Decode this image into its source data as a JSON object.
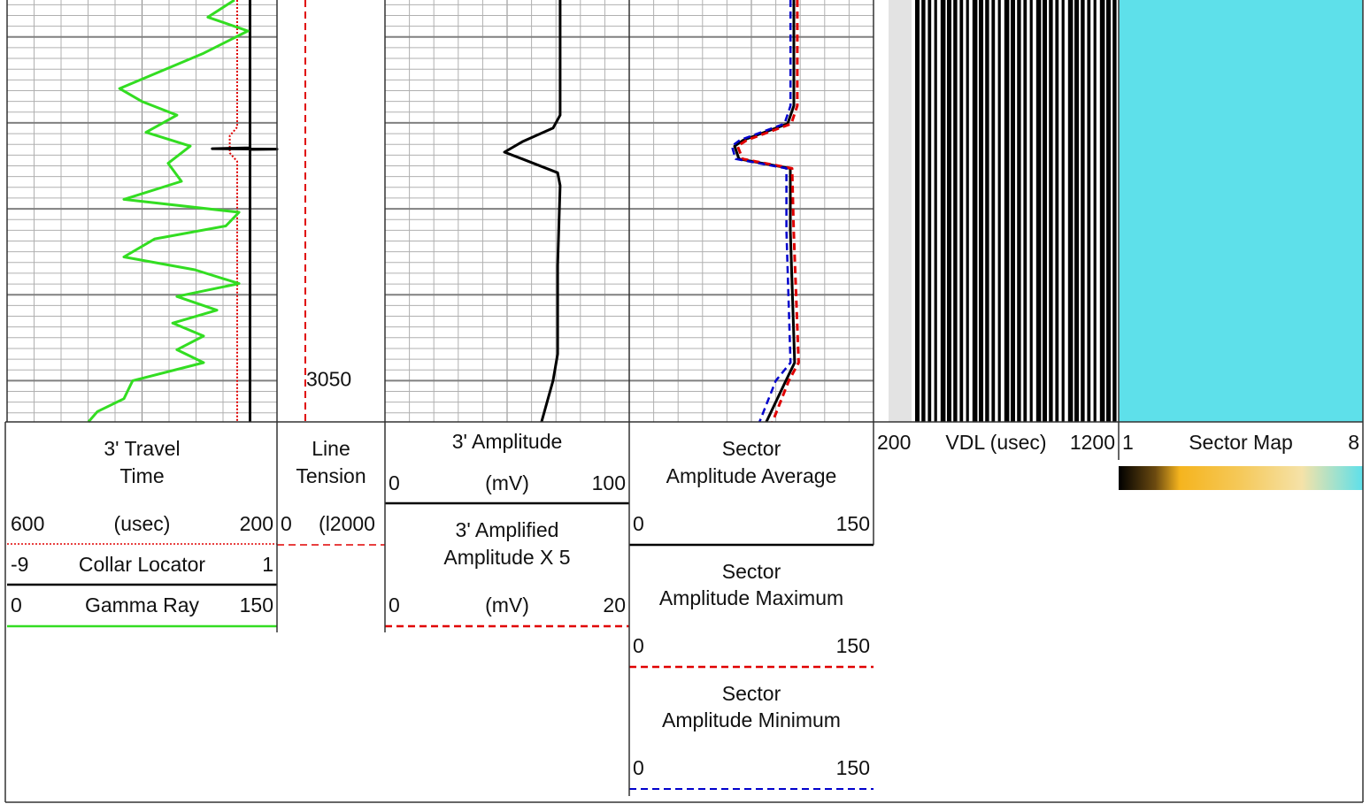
{
  "depth": {
    "range": [
      3005.7,
      3054.8
    ],
    "grid": [
      3010,
      3020,
      3030,
      3040,
      3050
    ],
    "label": 3050
  },
  "curves": [
    {
      "title": [
        "3' Travel",
        "Time"
      ],
      "unit": "(usec)",
      "left": 600,
      "right": 200,
      "color": "#e00000",
      "style": "dotted",
      "depth": [
        3005.7,
        3020.5,
        3021.5,
        3023.5,
        3024.5,
        3054.8
      ],
      "values": [
        259,
        259,
        270,
        270,
        259,
        259
      ]
    },
    {
      "title": [
        "Collar Locator"
      ],
      "left": -9,
      "right": 1,
      "color": "#000000",
      "style": "solid",
      "depth": [
        3005.7,
        3022.9,
        3023.0,
        3023.05,
        3023.1,
        3054.8
      ],
      "values": [
        0,
        0,
        -1.4,
        1,
        0,
        0
      ]
    },
    {
      "title": [
        "Gamma Ray"
      ],
      "left": 0,
      "right": 150,
      "color": "#33dd22",
      "style": "solid",
      "depth": [
        3005.7,
        3007.7,
        3009.3,
        3011.9,
        3016.0,
        3017.5,
        3019.1,
        3021.1,
        3022.7,
        3024.7,
        3026.8,
        3028.9,
        3030.4,
        3032.0,
        3033.5,
        3035.6,
        3037.1,
        3038.7,
        3040.2,
        3041.8,
        3043.3,
        3044.8,
        3046.4,
        3047.9,
        3050.0,
        3052.1,
        3053.6,
        3054.8
      ],
      "values": [
        126.4,
        111.6,
        133.8,
        109.2,
        62.5,
        74.8,
        94.4,
        77.2,
        101.8,
        89.5,
        96.9,
        64.9,
        128.9,
        121.5,
        82.1,
        64.9,
        104.3,
        128.9,
        94.4,
        116.6,
        92.0,
        109.2,
        94.4,
        109.2,
        69.8,
        64.9,
        50.2,
        45.2
      ]
    },
    {
      "title": [
        "Line",
        "Tension"
      ],
      "unit": "(l2000",
      "left": 0,
      "color": "#e00000",
      "style": "dashed",
      "depth": [
        3005.7,
        3054.8
      ],
      "values": [
        3150,
        3150
      ]
    },
    {
      "title": [
        "3' Amplitude"
      ],
      "unit": "(mV)",
      "left": 0,
      "right": 100,
      "color": "#000000",
      "style": "solid",
      "depth": [
        3005.7,
        3019.1,
        3020.6,
        3022.2,
        3023.4,
        3024.2,
        3025.8,
        3027.3,
        3036.6,
        3046.9,
        3050.0,
        3054.8
      ],
      "values": [
        71.7,
        71.7,
        68.8,
        56.2,
        48.9,
        56.2,
        70.7,
        71.7,
        70.7,
        70.7,
        68.8,
        64.1
      ]
    },
    {
      "title": [
        "3' Amplified",
        "Amplitude X 5"
      ],
      "unit": "(mV)",
      "left": 0,
      "right": 20,
      "color": "#e00000",
      "style": "dashed"
    },
    {
      "title": [
        "Sector",
        "Amplitude Average"
      ],
      "left": 0,
      "right": 150,
      "color": "#000000",
      "style": "solid",
      "depth": [
        3005.7,
        3018.0,
        3020.1,
        3022.0,
        3022.7,
        3024.2,
        3025.3,
        3032.5,
        3047.9,
        3050.0,
        3054.8
      ],
      "values": [
        101.1,
        101.1,
        97.3,
        70.1,
        64.7,
        67.4,
        98.9,
        98.9,
        101.6,
        96.2,
        84.2
      ]
    },
    {
      "title": [
        "Sector",
        "Amplitude Maximum"
      ],
      "left": 0,
      "right": 150,
      "color": "#e00000",
      "style": "dashed",
      "depth": [
        3005.7,
        3018.0,
        3020.1,
        3022.0,
        3022.7,
        3024.2,
        3025.3,
        3032.5,
        3047.9,
        3050.0,
        3054.8
      ],
      "values": [
        103.2,
        103.2,
        99.5,
        72.3,
        66.5,
        69.6,
        100.0,
        101.0,
        104.0,
        98.0,
        88.0
      ]
    },
    {
      "title": [
        "Sector",
        "Amplitude Minimum"
      ],
      "left": 0,
      "right": 150,
      "color": "#0000cc",
      "style": "dashed",
      "depth": [
        3005.7,
        3018.0,
        3020.1,
        3022.0,
        3022.7,
        3024.2,
        3025.3,
        3032.5,
        3047.9,
        3050.0,
        3054.8
      ],
      "values": [
        99.0,
        99.0,
        95.3,
        68.0,
        63.0,
        65.3,
        96.5,
        96.5,
        99.0,
        90.0,
        80.0
      ]
    },
    {
      "title": [
        "VDL (usec)"
      ],
      "left": 200,
      "right": 1200
    },
    {
      "title": [
        "Sector Map"
      ],
      "left": 1,
      "right": 8,
      "color": "#5ee0ea"
    }
  ]
}
